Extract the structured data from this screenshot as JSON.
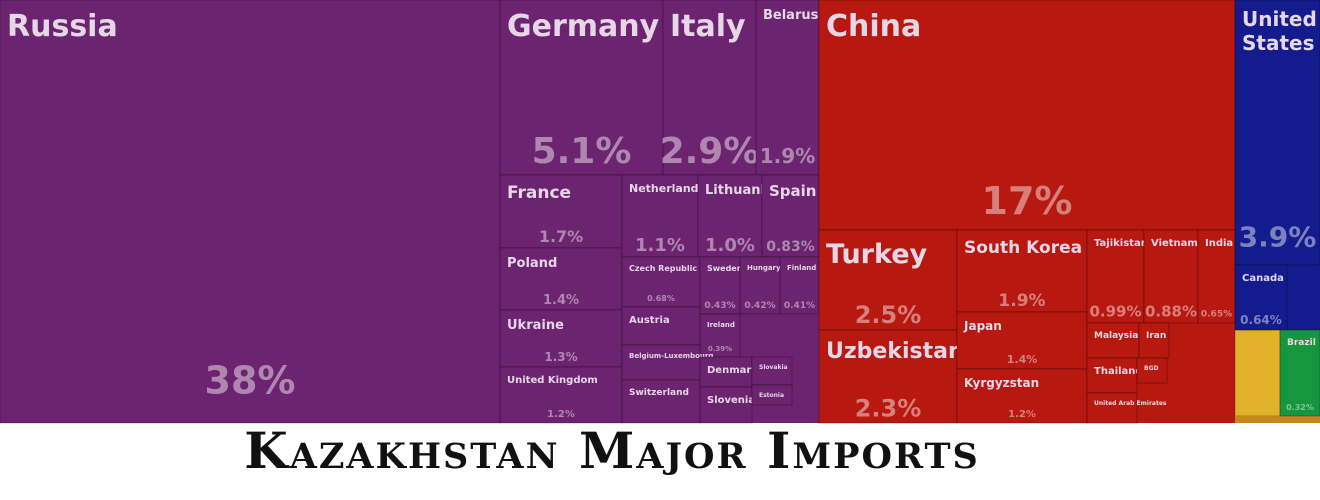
{
  "chart_data": {
    "type": "treemap",
    "title": "Kazakhstan Major Imports",
    "categories": [
      "Russia",
      "Germany",
      "Italy",
      "Belarus",
      "France",
      "Poland",
      "Ukraine",
      "United Kingdom",
      "Netherlands",
      "Lithuania",
      "Spain",
      "Czech Republic",
      "Sweden",
      "Hungary",
      "Finland",
      "Austria",
      "Ireland",
      "Belgium-Luxembourg",
      "Switzerland",
      "Denmark",
      "Slovenia",
      "Slovakia",
      "Estonia",
      "China",
      "Turkey",
      "Uzbekistan",
      "South Korea",
      "Japan",
      "Kyrgyzstan",
      "Tajikistan",
      "Vietnam",
      "India",
      "Malaysia",
      "Iran",
      "Thailand",
      "BGD",
      "United Arab Emirates",
      "United States",
      "Canada",
      "Brazil"
    ],
    "values": [
      38,
      5.1,
      2.9,
      1.9,
      1.7,
      1.4,
      1.3,
      1.2,
      1.1,
      1.0,
      0.83,
      0.68,
      0.43,
      0.42,
      0.41,
      0.4,
      0.39,
      0.37,
      0.35,
      0.3,
      0.29,
      0.2,
      0.15,
      17,
      2.5,
      2.3,
      1.9,
      1.4,
      1.2,
      0.99,
      0.88,
      0.65,
      0.33,
      0.3,
      0.32,
      0.25,
      0.25,
      3.9,
      0.64,
      0.32
    ],
    "value_labels": [
      "38%",
      "5.1%",
      "2.9%",
      "1.9%",
      "1.7%",
      "1.4%",
      "1.3%",
      "1.2%",
      "1.1%",
      "1.0%",
      "0.83%",
      "0.68%",
      "0.43%",
      "0.42%",
      "0.41%",
      null,
      "0.39%",
      null,
      null,
      null,
      null,
      null,
      null,
      "17%",
      "2.5%",
      "2.3%",
      "1.9%",
      "1.4%",
      "1.2%",
      "0.99%",
      "0.88%",
      "0.65%",
      null,
      null,
      null,
      null,
      null,
      "3.9%",
      "0.64%",
      "0.32%"
    ],
    "colors": [
      "#6c2470",
      "#6c2470",
      "#6c2470",
      "#6c2470",
      "#6c2470",
      "#6c2470",
      "#6c2470",
      "#6c2470",
      "#6c2470",
      "#6c2470",
      "#6c2470",
      "#6c2470",
      "#6c2470",
      "#6c2470",
      "#6c2470",
      "#6c2470",
      "#6c2470",
      "#6c2470",
      "#6c2470",
      "#6c2470",
      "#6c2470",
      "#6c2470",
      "#6c2470",
      "#b71810",
      "#b71810",
      "#b71810",
      "#b71810",
      "#b71810",
      "#b71810",
      "#b71810",
      "#b71810",
      "#b71810",
      "#b71810",
      "#b71810",
      "#b71810",
      "#b71810",
      "#b71810",
      "#131b8d",
      "#131b8d",
      "#16963f"
    ]
  }
}
